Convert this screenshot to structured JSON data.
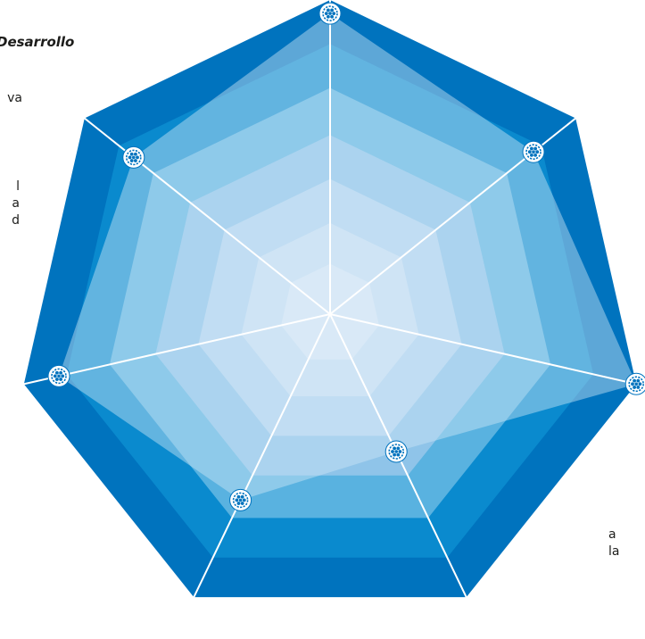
{
  "colors": {
    "ring_outer": "#0073be",
    "ring_2": "#0a8ace",
    "ring_3": "#59b2e0",
    "ring_4": "#8fc4e9",
    "ring_5": "#b6d6f0",
    "ring_6": "#d0e2f4",
    "ring_inner": "#e2ecf8",
    "value_fill": "#cfe6f7",
    "spoke": "#ffffff",
    "marker_fill": "#ffffff",
    "marker_stroke": "#0073be"
  },
  "text": {
    "title_fragment": "Desarrollo",
    "left_fragment_1": "va",
    "left_fragment_2": [
      "l",
      "a",
      "d"
    ],
    "right_fragment": [
      "a",
      "la"
    ]
  },
  "chart_data": {
    "type": "radar",
    "title": "",
    "axes": 7,
    "rings": 7,
    "scale": [
      0,
      7
    ],
    "grid": true,
    "legend": "none",
    "series": [
      {
        "values": [
          6.7,
          5.8,
          7.0,
          3.4,
          4.6,
          6.2,
          5.6
        ]
      }
    ]
  }
}
